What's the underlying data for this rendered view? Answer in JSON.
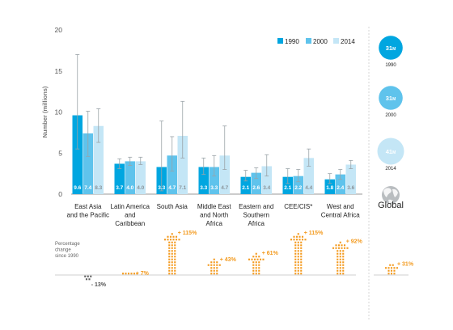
{
  "chart_data": {
    "type": "bar",
    "ylabel": "Number (millions)",
    "ylim": [
      0,
      20
    ],
    "yticks": [
      "0",
      "5",
      "10",
      "15",
      "20"
    ],
    "grid": false,
    "legend_position": "top-right",
    "categories": [
      [
        "East Asia",
        "and the Pacific"
      ],
      [
        "Latin America",
        "and",
        "Caribbean"
      ],
      [
        "South Asia"
      ],
      [
        "Middle East",
        "and North",
        "Africa"
      ],
      [
        "Eastern and",
        "Southern",
        "Africa"
      ],
      [
        "CEE/CIS*"
      ],
      [
        "West and",
        "Central Africa"
      ]
    ],
    "series": [
      {
        "name": "1990",
        "color": "#00a6e0",
        "values": [
          9.6,
          3.7,
          3.3,
          3.3,
          2.1,
          2.1,
          1.8
        ],
        "value_labels": [
          "9.6",
          "3.7",
          "3.3",
          "3.3",
          "2.1",
          "2.1",
          "1.8"
        ],
        "error_low": [
          5.5,
          3.1,
          0.4,
          2.4,
          1.6,
          1.3,
          1.3
        ],
        "error_high": [
          17.0,
          4.3,
          8.9,
          4.4,
          2.9,
          3.1,
          2.5
        ]
      },
      {
        "name": "2000",
        "color": "#5fc3ec",
        "values": [
          7.4,
          4.0,
          4.7,
          3.3,
          2.6,
          2.2,
          2.4
        ],
        "value_labels": [
          "7.4",
          "4.0",
          "4.7",
          "3.3",
          "2.6",
          "2.2",
          "2.4"
        ],
        "error_low": [
          4.6,
          3.5,
          2.8,
          2.2,
          1.9,
          1.5,
          1.8
        ],
        "error_high": [
          10.1,
          4.5,
          7.0,
          4.7,
          3.2,
          3.0,
          3.0
        ]
      },
      {
        "name": "2014",
        "color": "#c4e6f6",
        "values": [
          8.3,
          4.0,
          7.1,
          4.7,
          3.4,
          4.4,
          3.6
        ],
        "value_labels": [
          "8.3",
          "4.0",
          "7.1",
          "4.7",
          "3.4",
          "4.4",
          "3.6"
        ],
        "error_low": [
          6.3,
          3.6,
          4.4,
          3.0,
          2.2,
          3.4,
          3.1
        ],
        "error_high": [
          10.4,
          4.5,
          11.3,
          8.3,
          4.8,
          5.5,
          4.1
        ]
      }
    ],
    "global": {
      "label": "Global",
      "bubbles": [
        {
          "value": 31,
          "value_label": "31",
          "unit": "M",
          "year": "1990",
          "color": "#00a6e0"
        },
        {
          "value": 31,
          "value_label": "31",
          "unit": "M",
          "year": "2000",
          "color": "#5fc3ec"
        },
        {
          "value": 41,
          "value_label": "41",
          "unit": "M",
          "year": "2014",
          "color": "#c4e6f6"
        }
      ],
      "change": 31,
      "change_label": "+ 31%"
    },
    "percentage_change": {
      "label": [
        "Percentage",
        "change",
        "since 1990"
      ],
      "arrow_color": "#f39a1e",
      "values": [
        -13,
        7,
        115,
        43,
        61,
        115,
        92
      ],
      "labels": [
        "- 13%",
        "+ 7%",
        "+ 115%",
        "+ 43%",
        "+ 61%",
        "+ 115%",
        "+ 92%"
      ]
    }
  }
}
